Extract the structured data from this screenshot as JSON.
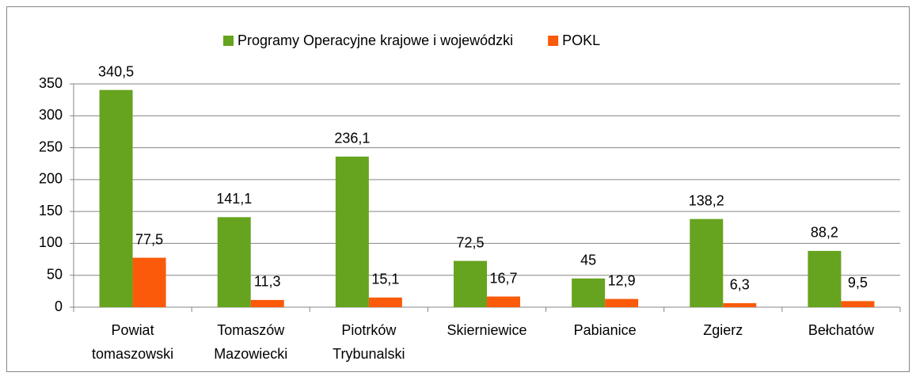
{
  "chart_data": {
    "type": "bar",
    "categories": [
      "Powiat tomaszowski",
      "Tomaszów Mazowiecki",
      "Piotrków Trybunalski",
      "Skierniewice",
      "Pabianice",
      "Zgierz",
      "Bełchatów"
    ],
    "series": [
      {
        "name": "Programy Operacyjne krajowe i wojewódzki",
        "color": "#66a31e",
        "values": [
          340.5,
          141.1,
          236.1,
          72.5,
          45,
          138.2,
          88.2
        ],
        "value_labels": [
          "340,5",
          "141,1",
          "236,1",
          "72,5",
          "45",
          "138,2",
          "88,2"
        ]
      },
      {
        "name": "POKL",
        "color": "#fa5a0a",
        "values": [
          77.5,
          11.3,
          15.1,
          16.7,
          12.9,
          6.3,
          9.5
        ],
        "value_labels": [
          "77,5",
          "11,3",
          "15,1",
          "16,7",
          "12,9",
          "6,3",
          "9,5"
        ]
      }
    ],
    "ylim": [
      0,
      350
    ],
    "yticks": [
      0,
      50,
      100,
      150,
      200,
      250,
      300,
      350
    ],
    "grid": true,
    "legend": "top"
  }
}
